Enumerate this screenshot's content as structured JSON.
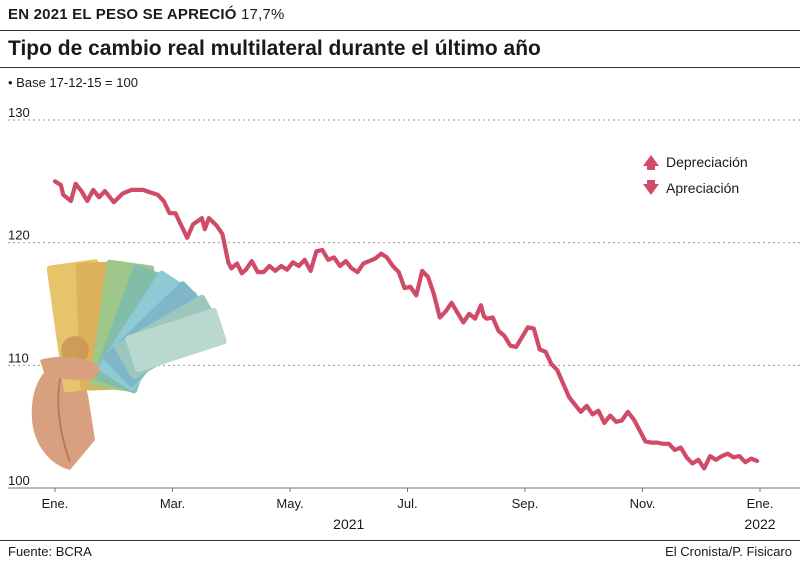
{
  "header": {
    "kicker_bold": "EN 2021 EL PESO SE APRECIÓ",
    "kicker_value": "17,7%",
    "title": "Tipo de cambio real multilateral durante el último año",
    "base_note": "• Base 17-12-15 = 100"
  },
  "footer": {
    "source": "Fuente: BCRA",
    "credit": "El Cronista/P. Fisicaro"
  },
  "legend": {
    "items": [
      {
        "label": "Depreciación",
        "icon": "arrow-up-icon"
      },
      {
        "label": "Apreciación",
        "icon": "arrow-down-icon"
      }
    ]
  },
  "colors": {
    "line": "#cf4b67",
    "grid": "#9a9a9a",
    "text": "#1a1a1a"
  },
  "chart_data": {
    "type": "line",
    "title": "Tipo de cambio real multilateral durante el último año",
    "ylim": [
      100,
      130
    ],
    "yticks": [
      100,
      110,
      120,
      130
    ],
    "xticks": [
      {
        "t": 0,
        "label": "Ene."
      },
      {
        "t": 2,
        "label": "Mar."
      },
      {
        "t": 4,
        "label": "May."
      },
      {
        "t": 6,
        "label": "Jul."
      },
      {
        "t": 8,
        "label": "Sep."
      },
      {
        "t": 10,
        "label": "Nov."
      },
      {
        "t": 12,
        "label": "Ene."
      }
    ],
    "year_labels": [
      {
        "t": 5,
        "label": "2021"
      },
      {
        "t": 12,
        "label": "2022"
      }
    ],
    "grid": true,
    "legend_position": "top-right",
    "series": [
      {
        "values": [
          [
            0.0,
            125.0
          ],
          [
            0.1,
            124.7
          ],
          [
            0.14,
            123.9
          ],
          [
            0.27,
            123.4
          ],
          [
            0.35,
            124.8
          ],
          [
            0.45,
            124.2
          ],
          [
            0.55,
            123.4
          ],
          [
            0.65,
            124.3
          ],
          [
            0.75,
            123.7
          ],
          [
            0.85,
            124.2
          ],
          [
            1.0,
            123.3
          ],
          [
            1.15,
            124.0
          ],
          [
            1.3,
            124.3
          ],
          [
            1.5,
            124.3
          ],
          [
            1.62,
            124.1
          ],
          [
            1.75,
            123.9
          ],
          [
            1.85,
            123.4
          ],
          [
            1.95,
            122.4
          ],
          [
            2.05,
            122.4
          ],
          [
            2.15,
            121.4
          ],
          [
            2.25,
            120.4
          ],
          [
            2.35,
            121.5
          ],
          [
            2.5,
            122.0
          ],
          [
            2.55,
            121.1
          ],
          [
            2.62,
            122.0
          ],
          [
            2.75,
            121.4
          ],
          [
            2.85,
            120.7
          ],
          [
            2.95,
            118.4
          ],
          [
            3.0,
            117.9
          ],
          [
            3.1,
            118.3
          ],
          [
            3.18,
            117.5
          ],
          [
            3.25,
            117.8
          ],
          [
            3.35,
            118.5
          ],
          [
            3.45,
            117.6
          ],
          [
            3.55,
            117.6
          ],
          [
            3.65,
            118.1
          ],
          [
            3.75,
            117.7
          ],
          [
            3.85,
            118.1
          ],
          [
            3.95,
            117.8
          ],
          [
            4.05,
            118.4
          ],
          [
            4.15,
            118.1
          ],
          [
            4.25,
            118.6
          ],
          [
            4.35,
            117.7
          ],
          [
            4.45,
            119.3
          ],
          [
            4.55,
            119.4
          ],
          [
            4.65,
            118.6
          ],
          [
            4.75,
            118.8
          ],
          [
            4.85,
            118.1
          ],
          [
            4.95,
            118.5
          ],
          [
            5.05,
            117.9
          ],
          [
            5.15,
            117.6
          ],
          [
            5.25,
            118.3
          ],
          [
            5.35,
            118.5
          ],
          [
            5.45,
            118.7
          ],
          [
            5.55,
            119.1
          ],
          [
            5.65,
            118.8
          ],
          [
            5.75,
            118.1
          ],
          [
            5.85,
            117.6
          ],
          [
            5.95,
            116.3
          ],
          [
            6.05,
            116.4
          ],
          [
            6.15,
            115.7
          ],
          [
            6.25,
            117.7
          ],
          [
            6.35,
            117.2
          ],
          [
            6.45,
            115.8
          ],
          [
            6.55,
            113.9
          ],
          [
            6.65,
            114.4
          ],
          [
            6.75,
            115.1
          ],
          [
            6.85,
            114.3
          ],
          [
            6.95,
            113.5
          ],
          [
            7.05,
            114.2
          ],
          [
            7.15,
            113.8
          ],
          [
            7.25,
            114.9
          ],
          [
            7.3,
            114.0
          ],
          [
            7.35,
            113.8
          ],
          [
            7.45,
            113.9
          ],
          [
            7.55,
            112.8
          ],
          [
            7.65,
            112.4
          ],
          [
            7.75,
            111.6
          ],
          [
            7.85,
            111.5
          ],
          [
            7.95,
            112.3
          ],
          [
            8.05,
            113.1
          ],
          [
            8.15,
            113.0
          ],
          [
            8.25,
            111.3
          ],
          [
            8.35,
            111.1
          ],
          [
            8.45,
            110.1
          ],
          [
            8.55,
            109.6
          ],
          [
            8.65,
            108.5
          ],
          [
            8.75,
            107.4
          ],
          [
            8.85,
            106.8
          ],
          [
            8.95,
            106.2
          ],
          [
            9.05,
            106.7
          ],
          [
            9.15,
            106.0
          ],
          [
            9.25,
            106.3
          ],
          [
            9.35,
            105.3
          ],
          [
            9.45,
            105.9
          ],
          [
            9.55,
            105.4
          ],
          [
            9.65,
            105.5
          ],
          [
            9.75,
            106.2
          ],
          [
            9.85,
            105.6
          ],
          [
            9.95,
            104.7
          ],
          [
            10.05,
            103.8
          ],
          [
            10.15,
            103.7
          ],
          [
            10.25,
            103.7
          ],
          [
            10.35,
            103.6
          ],
          [
            10.45,
            103.6
          ],
          [
            10.55,
            103.1
          ],
          [
            10.65,
            103.3
          ],
          [
            10.75,
            102.5
          ],
          [
            10.85,
            102.0
          ],
          [
            10.95,
            102.3
          ],
          [
            11.05,
            101.6
          ],
          [
            11.15,
            102.6
          ],
          [
            11.25,
            102.3
          ],
          [
            11.35,
            102.6
          ],
          [
            11.45,
            102.8
          ],
          [
            11.55,
            102.5
          ],
          [
            11.65,
            102.6
          ],
          [
            11.75,
            102.1
          ],
          [
            11.85,
            102.4
          ],
          [
            11.95,
            102.2
          ]
        ]
      }
    ]
  }
}
